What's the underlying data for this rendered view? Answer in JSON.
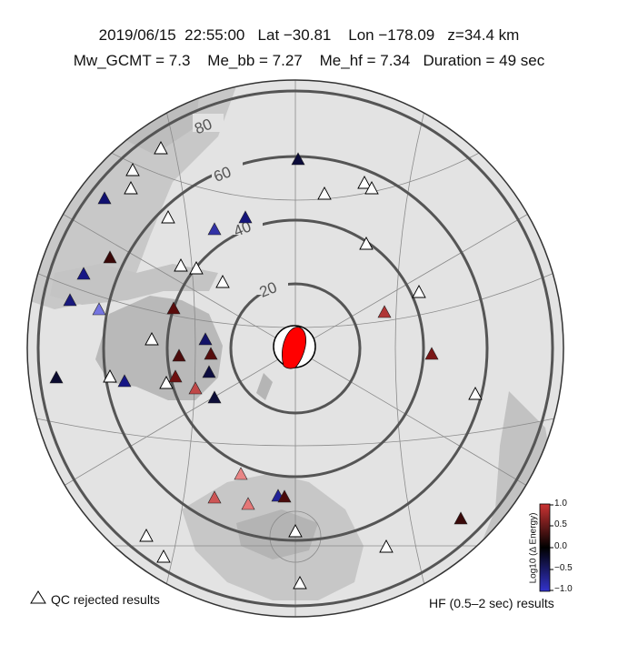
{
  "header": {
    "line1": "2019/06/15  22:55:00   Lat −30.81    Lon −178.09   z=34.4 km",
    "line2": "Mw_GCMT = 7.3    Me_bb = 7.27    Me_hf = 7.34   Duration = 49 sec"
  },
  "map": {
    "projection": "azimuthal equidistant",
    "center_lat": -30.81,
    "center_lon": -178.09,
    "distance_rings_deg": [
      "20",
      "40",
      "60",
      "80"
    ]
  },
  "colorbar": {
    "title": "Log10 (Δ Energy)",
    "ticks": [
      "1.0",
      "0.5",
      "0.0",
      "−0.5",
      "−1.0"
    ],
    "colors": [
      "#cc3333",
      "#000000",
      "#3333cc"
    ]
  },
  "legend": {
    "qc_label": "QC rejected results",
    "hf_label": "HF (0.5–2 sec) results"
  },
  "stations": [
    {
      "dlog_energy": 0.0,
      "color": "#ffffff",
      "rejected": true
    },
    {
      "dlog_energy": 0.0,
      "color": "#ffffff",
      "rejected": true
    },
    {
      "dlog_energy": 0.0,
      "color": "#ffffff",
      "rejected": true
    },
    {
      "dlog_energy": -0.2,
      "color": "#0b0b3a",
      "rejected": false
    },
    {
      "dlog_energy": 0.0,
      "color": "#ffffff",
      "rejected": true
    },
    {
      "dlog_energy": 0.0,
      "color": "#ffffff",
      "rejected": true
    },
    {
      "dlog_energy": 0.0,
      "color": "#ffffff",
      "rejected": true
    },
    {
      "dlog_energy": -0.35,
      "color": "#101070",
      "rejected": false
    },
    {
      "dlog_energy": 0.0,
      "color": "#ffffff",
      "rejected": true
    },
    {
      "dlog_energy": -0.55,
      "color": "#3232a6",
      "rejected": false
    },
    {
      "dlog_energy": -0.4,
      "color": "#14147a",
      "rejected": false
    },
    {
      "dlog_energy": 0.0,
      "color": "#ffffff",
      "rejected": true
    },
    {
      "dlog_energy": 0.15,
      "color": "#3a0808",
      "rejected": false
    },
    {
      "dlog_energy": 0.0,
      "color": "#ffffff",
      "rejected": true
    },
    {
      "dlog_energy": 0.0,
      "color": "#ffffff",
      "rejected": true
    },
    {
      "dlog_energy": -0.35,
      "color": "#161685",
      "rejected": false
    },
    {
      "dlog_energy": 0.0,
      "color": "#ffffff",
      "rejected": true
    },
    {
      "dlog_energy": 0.0,
      "color": "#ffffff",
      "rejected": true
    },
    {
      "dlog_energy": -0.35,
      "color": "#18187d",
      "rejected": false
    },
    {
      "dlog_energy": -0.85,
      "color": "#7575e0",
      "rejected": false
    },
    {
      "dlog_energy": 0.3,
      "color": "#5a0c0c",
      "rejected": false
    },
    {
      "dlog_energy": 0.65,
      "color": "#b03636",
      "rejected": false
    },
    {
      "dlog_energy": 0.0,
      "color": "#ffffff",
      "rejected": true
    },
    {
      "dlog_energy": -0.3,
      "color": "#121268",
      "rejected": false
    },
    {
      "dlog_energy": 0.25,
      "color": "#4d0c0c",
      "rejected": false
    },
    {
      "dlog_energy": 0.25,
      "color": "#560d0d",
      "rejected": false
    },
    {
      "dlog_energy": 0.45,
      "color": "#7a1616",
      "rejected": false
    },
    {
      "dlog_energy": -0.1,
      "color": "#0b0b30",
      "rejected": false
    },
    {
      "dlog_energy": 0.0,
      "color": "#ffffff",
      "rejected": true
    },
    {
      "dlog_energy": -0.15,
      "color": "#0d0d40",
      "rejected": false
    },
    {
      "dlog_energy": 0.35,
      "color": "#6e1010",
      "rejected": false
    },
    {
      "dlog_energy": -0.4,
      "color": "#161685",
      "rejected": false
    },
    {
      "dlog_energy": 0.0,
      "color": "#ffffff",
      "rejected": true
    },
    {
      "dlog_energy": 0.6,
      "color": "#c04848",
      "rejected": false
    },
    {
      "dlog_energy": -0.2,
      "color": "#0d0d38",
      "rejected": false
    },
    {
      "dlog_energy": 0.0,
      "color": "#ffffff",
      "rejected": true
    },
    {
      "dlog_energy": 0.8,
      "color": "#e88585",
      "rejected": false
    },
    {
      "dlog_energy": 0.7,
      "color": "#cd5555",
      "rejected": false
    },
    {
      "dlog_energy": 0.8,
      "color": "#e47777",
      "rejected": false
    },
    {
      "dlog_energy": -0.5,
      "color": "#222299",
      "rejected": false
    },
    {
      "dlog_energy": 0.2,
      "color": "#4a0a0a",
      "rejected": false
    },
    {
      "dlog_energy": 0.0,
      "color": "#ffffff",
      "rejected": true
    },
    {
      "dlog_energy": 0.0,
      "color": "#ffffff",
      "rejected": true
    },
    {
      "dlog_energy": 0.0,
      "color": "#ffffff",
      "rejected": true
    },
    {
      "dlog_energy": 0.0,
      "color": "#ffffff",
      "rejected": true
    },
    {
      "dlog_energy": 0.2,
      "color": "#3a0a0a",
      "rejected": false
    },
    {
      "dlog_energy": 0.0,
      "color": "#ffffff",
      "rejected": true
    }
  ]
}
